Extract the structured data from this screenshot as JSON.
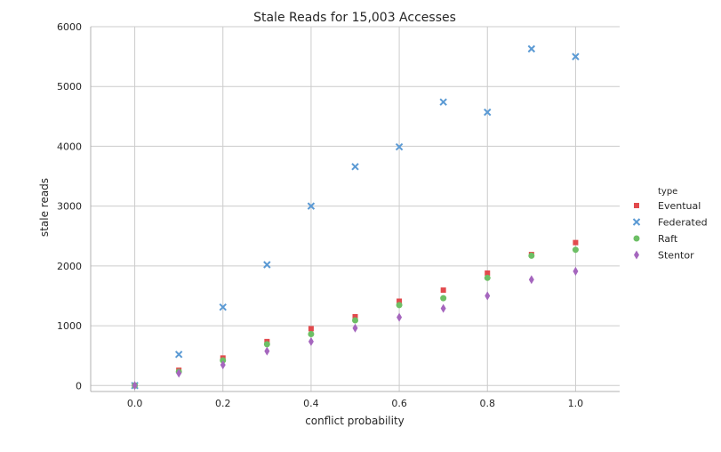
{
  "chart_data": {
    "type": "scatter",
    "title": "Stale Reads for 15,003 Accesses",
    "xlabel": "conflict probability",
    "ylabel": "stale reads",
    "xlim": [
      -0.1,
      1.1
    ],
    "ylim": [
      -100,
      6000
    ],
    "xticks": [
      0.0,
      0.2,
      0.4,
      0.6,
      0.8,
      1.0
    ],
    "xtick_labels": [
      "0.0",
      "0.2",
      "0.4",
      "0.6",
      "0.8",
      "1.0"
    ],
    "yticks": [
      0,
      1000,
      2000,
      3000,
      4000,
      5000,
      6000
    ],
    "ytick_labels": [
      "0",
      "1000",
      "2000",
      "3000",
      "4000",
      "5000",
      "6000"
    ],
    "grid": true,
    "legend_title": "type",
    "legend_position": "right",
    "x": [
      0.0,
      0.1,
      0.2,
      0.3,
      0.4,
      0.5,
      0.6,
      0.7,
      0.8,
      0.9,
      1.0
    ],
    "series": [
      {
        "name": "Eventual",
        "marker": "square",
        "color": "#e24a4d",
        "values": [
          0,
          255,
          460,
          735,
          950,
          1150,
          1410,
          1595,
          1880,
          2190,
          2390
        ]
      },
      {
        "name": "Federated",
        "marker": "x",
        "color": "#5b9ad4",
        "values": [
          0,
          520,
          1310,
          2020,
          3000,
          3660,
          3990,
          4740,
          4570,
          5630,
          5500
        ]
      },
      {
        "name": "Raft",
        "marker": "circle",
        "color": "#6dbf65",
        "values": [
          0,
          230,
          420,
          690,
          860,
          1090,
          1345,
          1460,
          1800,
          2170,
          2270
        ]
      },
      {
        "name": "Stentor",
        "marker": "diamond",
        "color": "#a566be",
        "values": [
          0,
          205,
          345,
          575,
          735,
          960,
          1140,
          1290,
          1500,
          1770,
          1910
        ]
      }
    ]
  }
}
